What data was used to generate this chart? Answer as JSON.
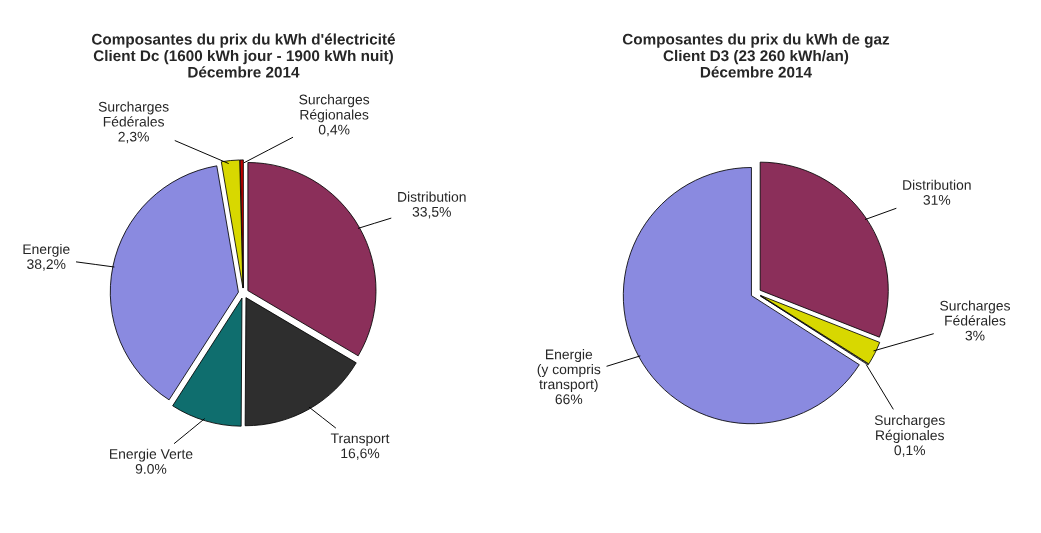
{
  "chart_data": [
    {
      "type": "pie",
      "title": "Composantes du prix du kWh d'électricité\nClient Dc (1600 kWh jour - 1900 kWh nuit)\nDécembre 2014",
      "categories": [
        "Distribution",
        "Transport",
        "Energie Verte",
        "Energie",
        "Surcharges\nFédérales",
        "Surcharges\nRégionales"
      ],
      "values": [
        33.5,
        16.6,
        9.0,
        38.2,
        2.3,
        0.4
      ],
      "value_labels": [
        "33,5%",
        "16,6%",
        "9.0%",
        "38,2%",
        "2,3%",
        "0,4%"
      ],
      "colors": [
        "#8b2f5a",
        "#2e2e2e",
        "#0f6e6e",
        "#8a8ae0",
        "#d8d800",
        "#c00000"
      ],
      "legend": false
    },
    {
      "type": "pie",
      "title": "Composantes du prix du kWh de gaz\nClient D3 (23 260 kWh/an)\nDécembre 2014",
      "categories": [
        "Distribution",
        "Surcharges\nFédérales",
        "Surcharges\nRégionales",
        "Energie\n(y compris\ntransport)"
      ],
      "values": [
        31,
        3,
        0.1,
        66
      ],
      "value_labels": [
        "31%",
        "3%",
        "0,1%",
        "66%"
      ],
      "colors": [
        "#8b2f5a",
        "#d8d800",
        "#ffffff",
        "#8a8ae0"
      ],
      "legend": false
    }
  ]
}
